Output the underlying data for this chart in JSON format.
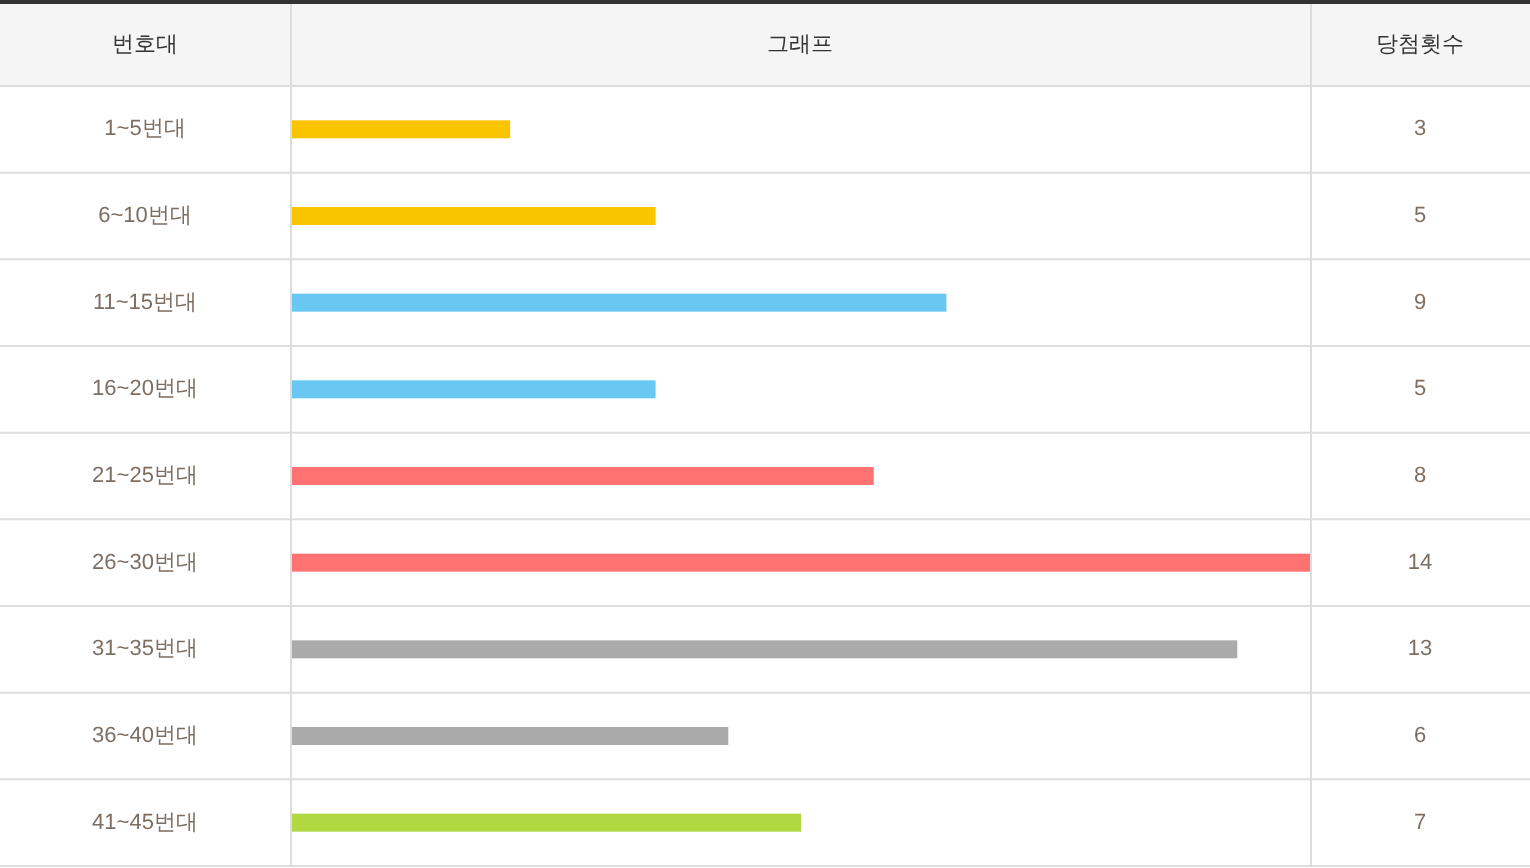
{
  "chart_data": {
    "type": "bar",
    "orientation": "horizontal",
    "ylabel": "번호대",
    "xlabel": "그래프",
    "annotations": [
      "당첨횟수"
    ],
    "categories": [
      "1~5번대",
      "6~10번대",
      "11~15번대",
      "16~20번대",
      "21~25번대",
      "26~30번대",
      "31~35번대",
      "36~40번대",
      "41~45번대"
    ],
    "values": [
      3,
      5,
      9,
      5,
      8,
      14,
      13,
      6,
      7
    ],
    "colors": [
      "#fbc400",
      "#fbc400",
      "#69c8f2",
      "#69c8f2",
      "#ff7272",
      "#ff7272",
      "#aaaaaa",
      "#aaaaaa",
      "#b0d840"
    ],
    "data_labels": true
  }
}
